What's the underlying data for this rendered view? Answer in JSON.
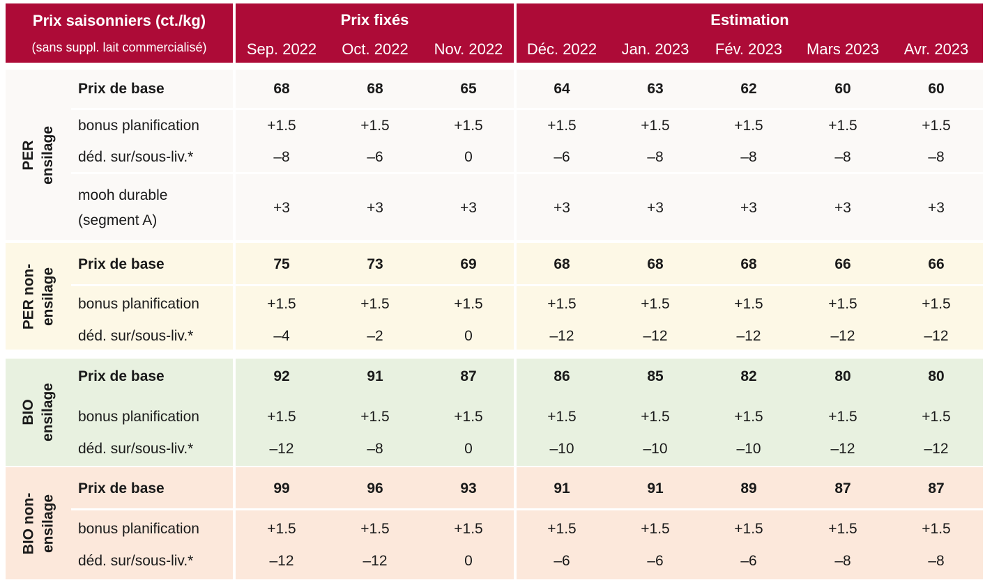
{
  "header": {
    "title": "Prix saisonniers (ct./kg)",
    "subtitle": "(sans suppl. lait commercialisé)",
    "fixed_label": "Prix fixés",
    "estimate_label": "Estimation"
  },
  "months": [
    "Sep. 2022",
    "Oct. 2022",
    "Nov. 2022",
    "Déc. 2022",
    "Jan. 2023",
    "Fév. 2023",
    "Mars 2023",
    "Avr. 2023"
  ],
  "colors": {
    "header": "#ad0b37",
    "per_ensilage": "#fbf9f7",
    "per_non_ensilage": "#fdf8e6",
    "bio_ensilage": "#e8f1e0",
    "bio_non_ensilage": "#fce8db"
  },
  "groups": [
    {
      "name": "PER\nensilage",
      "rows": [
        {
          "label": "Prix de base",
          "values": [
            "68",
            "68",
            "65",
            "64",
            "63",
            "62",
            "60",
            "60"
          ]
        },
        {
          "label": "bonus planification",
          "values": [
            "+1.5",
            "+1.5",
            "+1.5",
            "+1.5",
            "+1.5",
            "+1.5",
            "+1.5",
            "+1.5"
          ]
        },
        {
          "label": "déd. sur/sous-liv.*",
          "values": [
            "–8",
            "–6",
            "0",
            "–6",
            "–8",
            "–8",
            "–8",
            "–8"
          ]
        },
        {
          "label": "mooh durable",
          "label2": "(segment A)",
          "values": [
            "+3",
            "+3",
            "+3",
            "+3",
            "+3",
            "+3",
            "+3",
            "+3"
          ]
        }
      ]
    },
    {
      "name": "PER non-\nensilage",
      "rows": [
        {
          "label": "Prix de base",
          "values": [
            "75",
            "73",
            "69",
            "68",
            "68",
            "68",
            "66",
            "66"
          ]
        },
        {
          "label": "bonus planification",
          "values": [
            "+1.5",
            "+1.5",
            "+1.5",
            "+1.5",
            "+1.5",
            "+1.5",
            "+1.5",
            "+1.5"
          ]
        },
        {
          "label": "déd. sur/sous-liv.*",
          "values": [
            "–4",
            "–2",
            "0",
            "–12",
            "–12",
            "–12",
            "–12",
            "–12"
          ]
        }
      ]
    },
    {
      "name": "BIO\nensilage",
      "rows": [
        {
          "label": "Prix de base",
          "values": [
            "92",
            "91",
            "87",
            "86",
            "85",
            "82",
            "80",
            "80"
          ]
        },
        {
          "label": "bonus planification",
          "values": [
            "+1.5",
            "+1.5",
            "+1.5",
            "+1.5",
            "+1.5",
            "+1.5",
            "+1.5",
            "+1.5"
          ]
        },
        {
          "label": "déd. sur/sous-liv.*",
          "values": [
            "–12",
            "–8",
            "0",
            "–10",
            "–10",
            "–10",
            "–12",
            "–12"
          ]
        }
      ]
    },
    {
      "name": "BIO non-\nensilage",
      "rows": [
        {
          "label": "Prix de base",
          "values": [
            "99",
            "96",
            "93",
            "91",
            "91",
            "89",
            "87",
            "87"
          ]
        },
        {
          "label": "bonus planification",
          "values": [
            "+1.5",
            "+1.5",
            "+1.5",
            "+1.5",
            "+1.5",
            "+1.5",
            "+1.5",
            "+1.5"
          ]
        },
        {
          "label": "déd. sur/sous-liv.*",
          "values": [
            "–12",
            "–12",
            "0",
            "–6",
            "–6",
            "–6",
            "–8",
            "–8"
          ]
        }
      ]
    }
  ],
  "chart_data": {
    "type": "table",
    "title": "Prix saisonniers (ct./kg)",
    "subtitle": "(sans suppl. lait commercialisé)",
    "column_groups": [
      {
        "label": "Prix fixés",
        "columns": [
          "Sep. 2022",
          "Oct. 2022",
          "Nov. 2022"
        ]
      },
      {
        "label": "Estimation",
        "columns": [
          "Déc. 2022",
          "Jan. 2023",
          "Fév. 2023",
          "Mars 2023",
          "Avr. 2023"
        ]
      }
    ],
    "series": [
      {
        "group": "PER ensilage",
        "row": "Prix de base",
        "values": [
          68,
          68,
          65,
          64,
          63,
          62,
          60,
          60
        ]
      },
      {
        "group": "PER ensilage",
        "row": "bonus planification",
        "values": [
          1.5,
          1.5,
          1.5,
          1.5,
          1.5,
          1.5,
          1.5,
          1.5
        ]
      },
      {
        "group": "PER ensilage",
        "row": "déd. sur/sous-liv.*",
        "values": [
          -8,
          -6,
          0,
          -6,
          -8,
          -8,
          -8,
          -8
        ]
      },
      {
        "group": "PER ensilage",
        "row": "mooh durable (segment A)",
        "values": [
          3,
          3,
          3,
          3,
          3,
          3,
          3,
          3
        ]
      },
      {
        "group": "PER non-ensilage",
        "row": "Prix de base",
        "values": [
          75,
          73,
          69,
          68,
          68,
          68,
          66,
          66
        ]
      },
      {
        "group": "PER non-ensilage",
        "row": "bonus planification",
        "values": [
          1.5,
          1.5,
          1.5,
          1.5,
          1.5,
          1.5,
          1.5,
          1.5
        ]
      },
      {
        "group": "PER non-ensilage",
        "row": "déd. sur/sous-liv.*",
        "values": [
          -4,
          -2,
          0,
          -12,
          -12,
          -12,
          -12,
          -12
        ]
      },
      {
        "group": "BIO ensilage",
        "row": "Prix de base",
        "values": [
          92,
          91,
          87,
          86,
          85,
          82,
          80,
          80
        ]
      },
      {
        "group": "BIO ensilage",
        "row": "bonus planification",
        "values": [
          1.5,
          1.5,
          1.5,
          1.5,
          1.5,
          1.5,
          1.5,
          1.5
        ]
      },
      {
        "group": "BIO ensilage",
        "row": "déd. sur/sous-liv.*",
        "values": [
          -12,
          -8,
          0,
          -10,
          -10,
          -10,
          -12,
          -12
        ]
      },
      {
        "group": "BIO non-ensilage",
        "row": "Prix de base",
        "values": [
          99,
          96,
          93,
          91,
          91,
          89,
          87,
          87
        ]
      },
      {
        "group": "BIO non-ensilage",
        "row": "bonus planification",
        "values": [
          1.5,
          1.5,
          1.5,
          1.5,
          1.5,
          1.5,
          1.5,
          1.5
        ]
      },
      {
        "group": "BIO non-ensilage",
        "row": "déd. sur/sous-liv.*",
        "values": [
          -12,
          -12,
          0,
          -6,
          -6,
          -6,
          -8,
          -8
        ]
      }
    ]
  }
}
